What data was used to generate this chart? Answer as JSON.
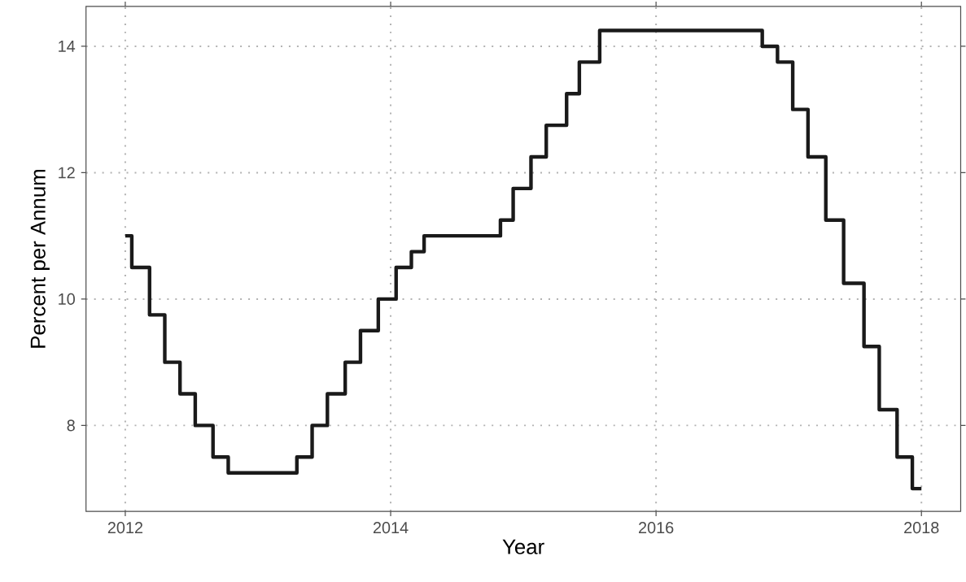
{
  "chart_data": {
    "type": "step",
    "xlabel": "Year",
    "ylabel": "Percent per Annum",
    "color": "#1a1a1a",
    "grid": true,
    "x": [
      "2012-01-01",
      "2012-01-19",
      "2012-03-08",
      "2012-04-19",
      "2012-05-31",
      "2012-07-12",
      "2012-08-30",
      "2012-10-11",
      "2013-04-18",
      "2013-05-30",
      "2013-07-11",
      "2013-08-29",
      "2013-10-10",
      "2013-11-28",
      "2014-01-16",
      "2014-02-27",
      "2014-04-03",
      "2014-10-30",
      "2014-12-04",
      "2015-01-22",
      "2015-03-05",
      "2015-04-30",
      "2015-06-04",
      "2015-07-30",
      "2016-10-20",
      "2016-12-01",
      "2017-01-12",
      "2017-02-23",
      "2017-04-13",
      "2017-06-01",
      "2017-07-27",
      "2017-09-07",
      "2017-10-26",
      "2017-12-07",
      "2018-01-01"
    ],
    "values": [
      11.0,
      10.5,
      9.75,
      9.0,
      8.5,
      8.0,
      7.5,
      7.25,
      7.5,
      8.0,
      8.5,
      9.0,
      9.5,
      10.0,
      10.5,
      10.75,
      11.0,
      11.25,
      11.75,
      12.25,
      12.75,
      13.25,
      13.75,
      14.25,
      14.0,
      13.75,
      13.0,
      12.25,
      11.25,
      10.25,
      9.25,
      8.25,
      7.5,
      7.0,
      7.0
    ],
    "xlim": [
      "2011-09-15",
      "2018-04-19"
    ],
    "xticks": [
      "2012",
      "2014",
      "2016",
      "2018"
    ],
    "ylim": [
      6.64,
      14.63
    ],
    "yticks": [
      8,
      10,
      12,
      14
    ]
  }
}
